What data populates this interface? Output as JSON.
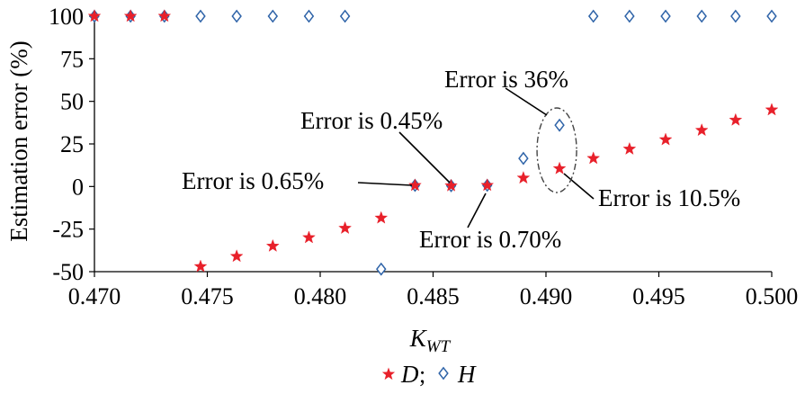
{
  "chart_data": {
    "type": "scatter",
    "xlabel": "K",
    "xlabel_sub": "WT",
    "ylabel": "Estimation error (%)",
    "xlim": [
      0.47,
      0.5
    ],
    "ylim": [
      -50,
      100
    ],
    "xticks": [
      "0.470",
      "0.475",
      "0.480",
      "0.485",
      "0.490",
      "0.495",
      "0.500"
    ],
    "yticks": [
      "100",
      "75",
      "50",
      "25",
      "0",
      "-25",
      "-50"
    ],
    "grid": false,
    "legend_placement": "bottom",
    "series": [
      {
        "name": "D",
        "marker": "star",
        "color": "#e8202a",
        "points": [
          [
            0.47,
            100
          ],
          [
            0.4716,
            100
          ],
          [
            0.4731,
            100
          ],
          [
            0.4747,
            -47
          ],
          [
            0.4763,
            -41
          ],
          [
            0.4779,
            -35
          ],
          [
            0.4795,
            -30
          ],
          [
            0.4811,
            -24.5
          ],
          [
            0.4827,
            -18.5
          ],
          [
            0.4842,
            0.65
          ],
          [
            0.4858,
            0.45
          ],
          [
            0.4874,
            0.7
          ],
          [
            0.489,
            5
          ],
          [
            0.4906,
            10.5
          ],
          [
            0.4921,
            16.5
          ],
          [
            0.4937,
            22
          ],
          [
            0.4953,
            27.5
          ],
          [
            0.4969,
            33
          ],
          [
            0.4984,
            39
          ],
          [
            0.5,
            45
          ]
        ]
      },
      {
        "name": "H",
        "marker": "diamond",
        "color": "#2e63a8",
        "points": [
          [
            0.47,
            100
          ],
          [
            0.4716,
            100
          ],
          [
            0.4731,
            100
          ],
          [
            0.4747,
            100
          ],
          [
            0.4763,
            100
          ],
          [
            0.4779,
            100
          ],
          [
            0.4795,
            100
          ],
          [
            0.4811,
            100
          ],
          [
            0.4827,
            -48.5
          ],
          [
            0.4842,
            0.65
          ],
          [
            0.4858,
            0.45
          ],
          [
            0.4874,
            0.7
          ],
          [
            0.489,
            16.5
          ],
          [
            0.4906,
            36
          ],
          [
            0.4921,
            100
          ],
          [
            0.4937,
            100
          ],
          [
            0.4953,
            100
          ],
          [
            0.4969,
            100
          ],
          [
            0.4984,
            100
          ],
          [
            0.5,
            100
          ]
        ]
      }
    ],
    "annotations": [
      {
        "text": "Error is 36%",
        "target": [
          0.4906,
          36
        ]
      },
      {
        "text": "Error is 0.45%",
        "target": [
          0.4858,
          0.45
        ]
      },
      {
        "text": "Error is 0.65%",
        "target": [
          0.4842,
          0.65
        ]
      },
      {
        "text": "Error is 10.5%",
        "target": [
          0.4906,
          10.5
        ]
      },
      {
        "text": "Error is 0.70%",
        "target": [
          0.4874,
          0.7
        ]
      }
    ],
    "legend": {
      "separator": ";"
    }
  }
}
